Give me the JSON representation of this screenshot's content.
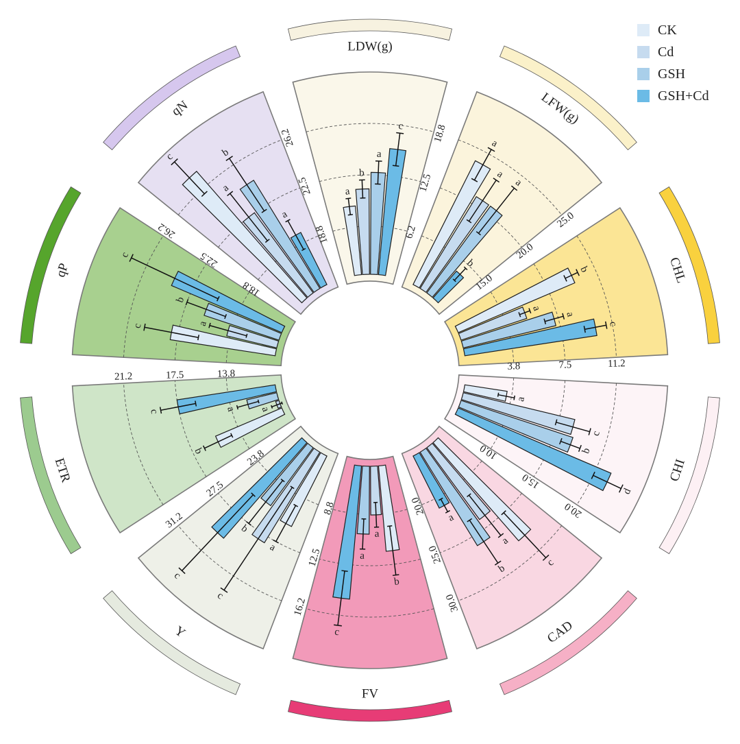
{
  "chart_data": {
    "type": "bar",
    "layout": "circular",
    "legend_position": "top-right",
    "grid": true,
    "series": [
      {
        "name": "CK",
        "color": "#deebf7"
      },
      {
        "name": "Cd",
        "color": "#c6dbef"
      },
      {
        "name": "GSH",
        "color": "#a9cfea"
      },
      {
        "name": "GSH+Cd",
        "color": "#6bbbe6"
      }
    ],
    "panels": [
      {
        "label": "LDW(g)",
        "bg": "#faf7ea",
        "ring": "#f7f2e0",
        "ylim": [
          0,
          25
        ],
        "ticks": [
          "6.2",
          "12.5",
          "18.8"
        ],
        "values": [
          8.8,
          10.8,
          12.8,
          15.8
        ],
        "errors": [
          1.0,
          1.1,
          1.4,
          2.0
        ],
        "letters": [
          "a",
          "b",
          "a",
          "c"
        ]
      },
      {
        "label": "LFW(g)",
        "bg": "#fbf4dc",
        "ring": "#fbf1c9",
        "ylim": [
          10,
          30
        ],
        "ticks": [
          "15.0",
          "20.0",
          "25.0"
        ],
        "values": [
          23.8,
          20.8,
          20.8,
          13.8
        ],
        "errors": [
          1.7,
          2.4,
          2.8,
          0.8
        ],
        "letters": [
          "a",
          "a",
          "a",
          "b"
        ]
      },
      {
        "label": "CHL",
        "bg": "#fbe595",
        "ring": "#f9d13e",
        "ylim": [
          0,
          15
        ],
        "ticks": [
          "3.8",
          "7.5",
          "11.2"
        ],
        "values": [
          9.5,
          5.3,
          7.2,
          10.0
        ],
        "errors": [
          0.5,
          0.4,
          0.7,
          0.8
        ],
        "letters": [
          "b",
          "a",
          "a",
          "c"
        ]
      },
      {
        "label": "CHI",
        "bg": "#fdf4f7",
        "ring": "#fdf0f4",
        "ylim": [
          5,
          25
        ],
        "ticks": [
          "10.0",
          "15.0",
          "20.0"
        ],
        "values": [
          9.5,
          16.5,
          16.8,
          21.5
        ],
        "errors": [
          0.8,
          1.7,
          1.0,
          1.5
        ],
        "letters": [
          "a",
          "c",
          "b",
          "d"
        ]
      },
      {
        "label": "CAD",
        "bg": "#f9d7e2",
        "ring": "#f6b0c6",
        "ylim": [
          15,
          35
        ],
        "ticks": [
          "20.0",
          "25.0",
          "30.0"
        ],
        "values": [
          28.0,
          24.0,
          26.0,
          21.0
        ],
        "errors": [
          3.0,
          2.5,
          2.5,
          0.7
        ],
        "letters": [
          "c",
          "a",
          "b",
          "a"
        ]
      },
      {
        "label": "FV",
        "bg": "#f29ab9",
        "ring": "#e73c76",
        "ylim": [
          5,
          20
        ],
        "ticks": [
          "8.8",
          "12.5",
          "16.2"
        ],
        "values": [
          11.5,
          8.8,
          10.2,
          15.0
        ],
        "errors": [
          1.8,
          0.9,
          1.1,
          2.0
        ],
        "letters": [
          "b",
          "a",
          "a",
          "c"
        ]
      },
      {
        "label": "Y",
        "bg": "#eef0e8",
        "ring": "#e5eadf",
        "ylim": [
          20,
          35
        ],
        "ticks": [
          "23.8",
          "27.5",
          "31.2"
        ],
        "values": [
          26.0,
          28.0,
          25.5,
          29.5
        ],
        "errors": [
          1.5,
          4.5,
          2.0,
          3.8
        ],
        "letters": [
          "a",
          "c",
          "b",
          "c"
        ]
      },
      {
        "label": "ETR",
        "bg": "#cfe5c8",
        "ring": "#9ccb8f",
        "ylim": [
          10,
          25
        ],
        "ticks": [
          "13.8",
          "17.5",
          "21.2"
        ],
        "values": [
          15.5,
          10.5,
          12.5,
          17.5
        ],
        "errors": [
          1.1,
          0.4,
          0.8,
          1.3
        ],
        "letters": [
          "b",
          "a",
          "a",
          "c"
        ]
      },
      {
        "label": "qP",
        "bg": "#a8d08f",
        "ring": "#56a52c",
        "ylim": [
          15,
          30
        ],
        "ticks": [
          "18.8",
          "22.5",
          "26.2"
        ],
        "values": [
          23.0,
          19.0,
          21.0,
          24.0
        ],
        "errors": [
          2.0,
          1.4,
          1.5,
          3.5
        ],
        "letters": [
          "c",
          "a",
          "b",
          "c"
        ]
      },
      {
        "label": "qN",
        "bg": "#e6e0f2",
        "ring": "#d6c7ee",
        "ylim": [
          15,
          30
        ],
        "ticks": [
          "18.8",
          "22.5",
          "26.2"
        ],
        "values": [
          27.5,
          22.5,
          24.5,
          19.5
        ],
        "errors": [
          1.6,
          2.2,
          2.3,
          1.2
        ],
        "letters": [
          "c",
          "a",
          "b",
          "a"
        ]
      }
    ]
  }
}
